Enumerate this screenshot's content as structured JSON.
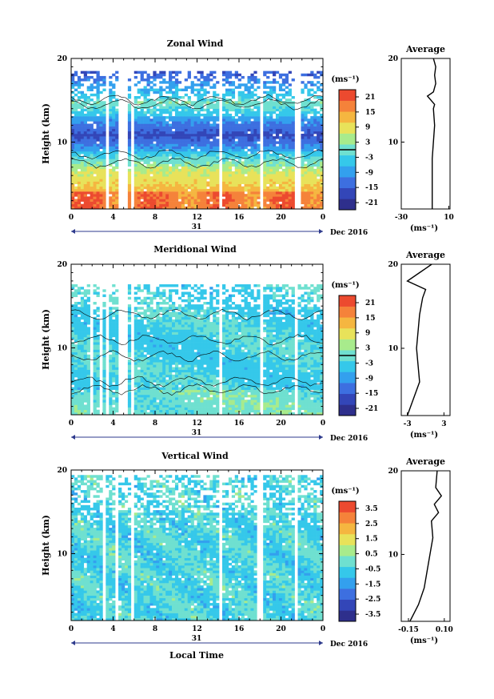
{
  "colors": {
    "scale": [
      "#2e2f8c",
      "#3346b8",
      "#3d6fe0",
      "#33a0ee",
      "#35c8ea",
      "#6fe0d0",
      "#a8eb8c",
      "#e8e25a",
      "#f5b640",
      "#f5823a",
      "#ec4a2f"
    ],
    "contour": "#000000",
    "blank": "#ffffff"
  },
  "time_label": "Local Time",
  "chart_data": [
    {
      "type": "heatmap",
      "title": "Zonal Wind",
      "ylabel": "Height (km)",
      "ylim": [
        2,
        20
      ],
      "xlim": [
        0,
        24
      ],
      "xticks": [
        "0",
        "4",
        "8",
        "12",
        "16",
        "20",
        "0"
      ],
      "yticks": [
        {
          "v": 10,
          "label": "10"
        },
        {
          "v": 20,
          "label": "20"
        }
      ],
      "date_axis": {
        "day": "31",
        "month_year": "Dec 2016"
      },
      "colorbar": {
        "unit": "(ms⁻¹)",
        "labels": [
          "21",
          "15",
          "9",
          "3",
          "-3",
          "-9",
          "-15",
          "-21"
        ],
        "range": [
          -24,
          24
        ],
        "zero_line": 0
      },
      "gaps_hours": [
        [
          3.3,
          3.7
        ],
        [
          4.5,
          5.5
        ],
        [
          5.8,
          6.0
        ],
        [
          14.0,
          14.4
        ],
        [
          17.9,
          18.2
        ],
        [
          21.3,
          21.8
        ]
      ],
      "profile_points": [
        [
          -4,
          2
        ],
        [
          -4,
          8
        ],
        [
          -2,
          12
        ],
        [
          -3,
          14
        ],
        [
          -2,
          14.5
        ],
        [
          -8,
          15.5
        ],
        [
          -3,
          16
        ],
        [
          -1,
          17
        ],
        [
          -2,
          18
        ],
        [
          -1,
          19
        ],
        [
          -2,
          19.5
        ],
        [
          -3,
          20
        ]
      ],
      "profile_axis": {
        "title": "Average",
        "xlim": [
          -30,
          11
        ],
        "ylim": [
          2,
          20
        ],
        "xticks": [
          {
            "v": -30,
            "label": "-30"
          },
          {
            "v": 10,
            "label": "10"
          }
        ],
        "yticks": [
          {
            "v": 10,
            "label": "10"
          },
          {
            "v": 20,
            "label": "20"
          }
        ],
        "unit": "(ms⁻¹)"
      }
    },
    {
      "type": "heatmap",
      "title": "Meridional Wind",
      "ylabel": "Height (km)",
      "ylim": [
        2,
        20
      ],
      "xlim": [
        0,
        24
      ],
      "xticks": [
        "0",
        "4",
        "8",
        "12",
        "16",
        "20",
        "0"
      ],
      "yticks": [
        {
          "v": 10,
          "label": "10"
        },
        {
          "v": 20,
          "label": "20"
        }
      ],
      "date_axis": {
        "day": "31",
        "month_year": "Dec 2016"
      },
      "colorbar": {
        "unit": "(ms⁻¹)",
        "labels": [
          "21",
          "15",
          "9",
          "3",
          "-3",
          "-9",
          "-15",
          "-21"
        ],
        "range": [
          -24,
          24
        ],
        "zero_line": 0
      },
      "gaps_hours": [
        [
          1.9,
          2.1
        ],
        [
          2.8,
          3.0
        ],
        [
          3.4,
          3.7
        ],
        [
          4.6,
          5.4
        ],
        [
          5.8,
          6.0
        ],
        [
          14.0,
          14.5
        ],
        [
          17.9,
          18.2
        ],
        [
          21.3,
          21.6
        ]
      ],
      "profile_points": [
        [
          -3,
          2
        ],
        [
          -1,
          6
        ],
        [
          -1.5,
          10
        ],
        [
          -1,
          14
        ],
        [
          -0.5,
          16
        ],
        [
          0,
          17
        ],
        [
          -3,
          18
        ],
        [
          -1,
          19
        ],
        [
          0,
          19.5
        ],
        [
          1,
          20
        ]
      ],
      "profile_axis": {
        "title": "Average",
        "xlim": [
          -4,
          4
        ],
        "ylim": [
          2,
          20
        ],
        "xticks": [
          {
            "v": -3,
            "label": "-3"
          },
          {
            "v": 3,
            "label": "3"
          }
        ],
        "yticks": [
          {
            "v": 10,
            "label": "10"
          },
          {
            "v": 20,
            "label": "20"
          }
        ],
        "unit": "(ms⁻¹)"
      }
    },
    {
      "type": "heatmap",
      "title": "Vertical Wind",
      "ylabel": "Height (km)",
      "ylim": [
        2,
        20
      ],
      "xlim": [
        0,
        24
      ],
      "xticks": [
        "0",
        "4",
        "8",
        "12",
        "16",
        "20",
        "0"
      ],
      "yticks": [
        {
          "v": 10,
          "label": "10"
        },
        {
          "v": 20,
          "label": "20"
        }
      ],
      "date_axis": {
        "day": "31",
        "month_year": "Dec 2016"
      },
      "colorbar": {
        "unit": "(ms⁻¹)",
        "labels": [
          "3.5",
          "2.5",
          "1.5",
          "0.5",
          "-0.5",
          "-1.5",
          "-2.5",
          "-3.5"
        ],
        "range": [
          -4,
          4
        ],
        "zero_line": null
      },
      "gaps_hours": [
        [
          3.0,
          3.4
        ],
        [
          4.3,
          4.6
        ],
        [
          5.6,
          6.0
        ],
        [
          14.0,
          14.4
        ],
        [
          17.8,
          18.2
        ],
        [
          21.2,
          21.5
        ]
      ],
      "profile_points": [
        [
          -0.14,
          2
        ],
        [
          -0.08,
          4
        ],
        [
          -0.04,
          6
        ],
        [
          -0.02,
          8
        ],
        [
          0.0,
          10
        ],
        [
          0.02,
          12
        ],
        [
          0.01,
          14
        ],
        [
          0.06,
          15
        ],
        [
          0.03,
          16
        ],
        [
          0.08,
          17
        ],
        [
          0.04,
          18
        ],
        [
          0.05,
          20
        ]
      ],
      "profile_axis": {
        "title": "Average",
        "xlim": [
          -0.2,
          0.14
        ],
        "ylim": [
          2,
          20
        ],
        "xticks": [
          {
            "v": -0.15,
            "label": "-0.15"
          },
          {
            "v": 0.1,
            "label": "0.10"
          }
        ],
        "yticks": [
          {
            "v": 10,
            "label": "10"
          },
          {
            "v": 20,
            "label": "20"
          }
        ],
        "unit": "(ms⁻¹)"
      }
    }
  ]
}
